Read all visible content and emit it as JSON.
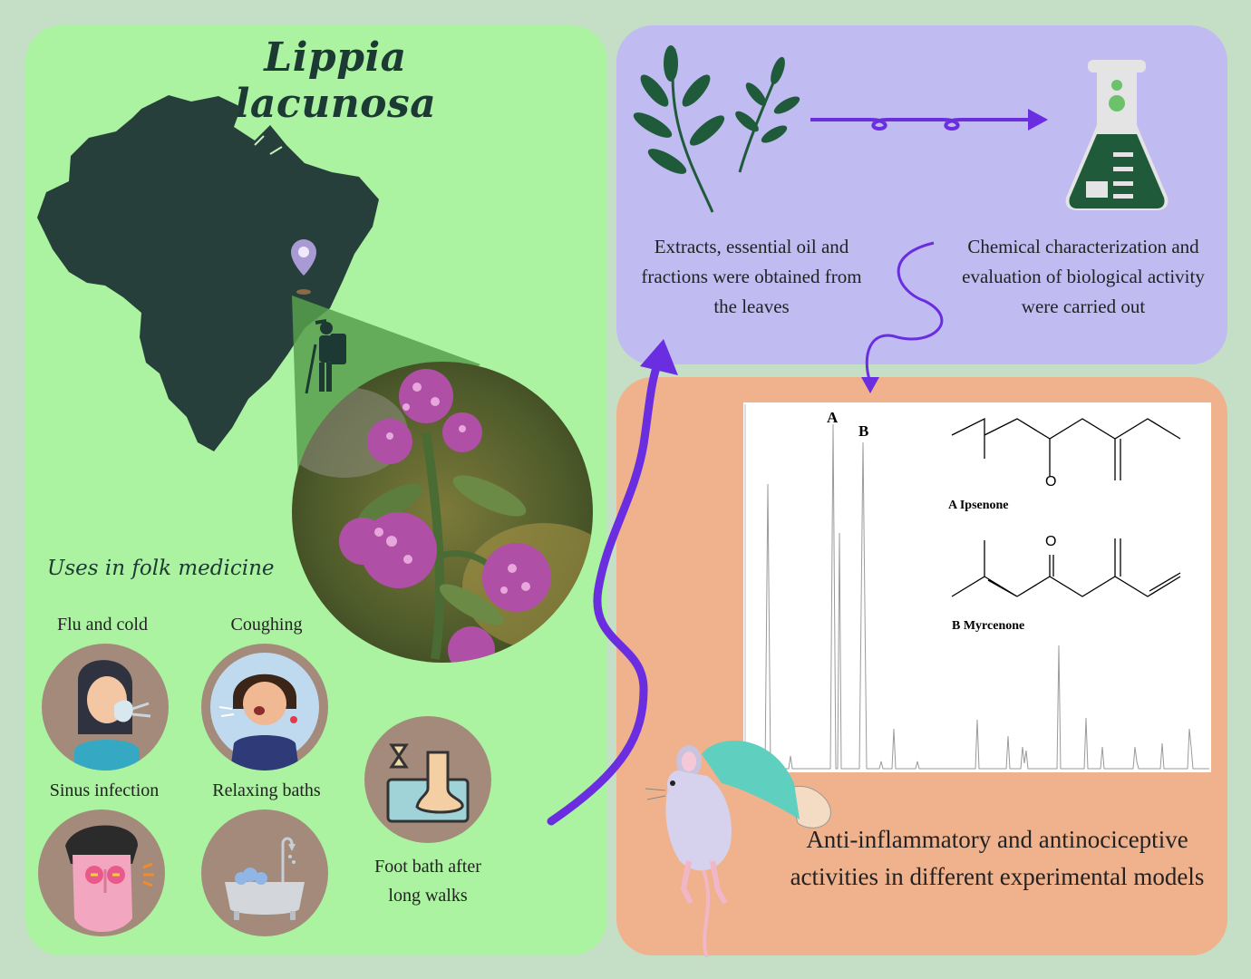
{
  "title": "Lippia lacunosa",
  "uses": {
    "heading": "Uses in folk medicine",
    "items": [
      {
        "label": "Flu and cold"
      },
      {
        "label": "Coughing"
      },
      {
        "label": "Sinus infection"
      },
      {
        "label": "Relaxing baths"
      },
      {
        "label": "Foot bath after long walks"
      }
    ]
  },
  "process": {
    "extraction": "Extracts, essential oil and fractions were obtained from the leaves",
    "characterization": "Chemical characterization and evaluation of biological activity were carried out"
  },
  "chromatogram": {
    "peak_a": "A",
    "peak_b": "B",
    "compound_a": "A Ipsenone",
    "compound_b": "B Myrcenone",
    "oxygen": "O"
  },
  "result": "Anti-inflammatory and antinociceptive activities in different experimental models",
  "colors": {
    "left_panel": "#abf2a1",
    "top_right_panel": "#c0bcf2",
    "bottom_right_panel": "#f0b28c",
    "dark_green": "#1c3a33",
    "arrow_purple": "#6a2de0"
  }
}
